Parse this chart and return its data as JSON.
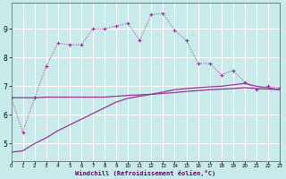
{
  "xlabel": "Windchill (Refroidissement éolien,°C)",
  "background_color": "#c8eaea",
  "grid_color": "#ffffff",
  "line_color": "#993399",
  "x": [
    0,
    1,
    2,
    3,
    4,
    5,
    6,
    7,
    8,
    9,
    10,
    11,
    12,
    13,
    14,
    15,
    16,
    17,
    18,
    19,
    20,
    21,
    22,
    23
  ],
  "line_main_y": [
    6.6,
    5.4,
    6.6,
    7.7,
    8.5,
    8.45,
    8.45,
    9.0,
    9.0,
    9.1,
    9.2,
    8.6,
    9.5,
    9.55,
    8.95,
    8.6,
    7.8,
    7.8,
    7.4,
    7.55,
    7.15,
    6.9,
    7.0,
    6.95
  ],
  "line_flat_y": [
    6.6,
    6.6,
    6.6,
    6.62,
    6.62,
    6.62,
    6.62,
    6.62,
    6.62,
    6.65,
    6.68,
    6.7,
    6.72,
    6.75,
    6.78,
    6.82,
    6.85,
    6.88,
    6.9,
    6.92,
    6.95,
    6.92,
    6.9,
    6.88
  ],
  "line_diag_y": [
    4.7,
    4.75,
    5.0,
    5.2,
    5.45,
    5.65,
    5.85,
    6.05,
    6.25,
    6.45,
    6.58,
    6.65,
    6.72,
    6.8,
    6.88,
    6.92,
    6.95,
    6.98,
    7.0,
    7.05,
    7.1,
    7.0,
    6.95,
    6.88
  ],
  "ylim": [
    4.4,
    9.9
  ],
  "xlim": [
    0,
    23
  ],
  "yticks": [
    5,
    6,
    7,
    8,
    9
  ],
  "xticks": [
    0,
    1,
    2,
    3,
    4,
    5,
    6,
    7,
    8,
    9,
    10,
    11,
    12,
    13,
    14,
    15,
    16,
    17,
    18,
    19,
    20,
    21,
    22,
    23
  ]
}
